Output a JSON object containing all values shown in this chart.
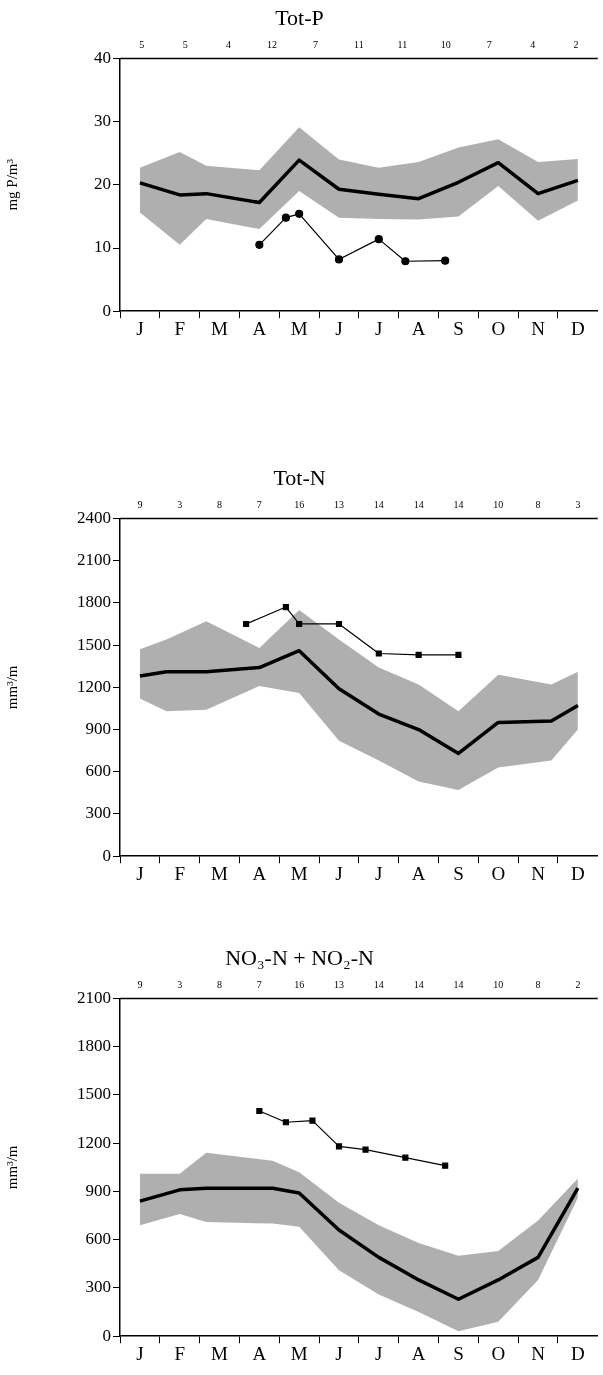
{
  "chart_data": [
    {
      "type": "line",
      "title": "Tot-P",
      "ylabel": "mg P/m³",
      "ylim": [
        0,
        40
      ],
      "yticks": [
        0,
        10,
        20,
        30,
        40
      ],
      "categories": [
        null,
        "J",
        null,
        null,
        "F",
        null,
        null,
        "M",
        null,
        null,
        "A",
        null,
        null,
        "M",
        null,
        null,
        "J",
        null,
        null,
        "J",
        null,
        null,
        "A",
        null,
        null,
        "S",
        null,
        null,
        "O",
        null,
        null,
        "N",
        null,
        null,
        "D",
        null
      ],
      "annotations": [
        "5",
        "5",
        "4",
        "12",
        "7",
        "11",
        "11",
        "10",
        "7",
        "4",
        "2"
      ],
      "grid": false,
      "legend": false,
      "series": [
        {
          "color": "#000000",
          "marker": "none",
          "values": [
            null,
            20.3,
            null,
            null,
            18.4,
            null,
            18.6,
            null,
            null,
            null,
            17.2,
            null,
            null,
            23.9,
            null,
            null,
            19.3,
            null,
            null,
            18.5,
            null,
            null,
            17.8,
            null,
            null,
            20.4,
            null,
            null,
            23.5,
            null,
            null,
            18.6,
            null,
            null,
            20.7,
            null
          ],
          "upper": [
            null,
            22.7,
            null,
            null,
            25.2,
            null,
            23,
            null,
            null,
            null,
            22.3,
            null,
            null,
            29.1,
            null,
            null,
            24,
            null,
            null,
            22.7,
            null,
            null,
            23.6,
            null,
            null,
            25.9,
            null,
            null,
            27.2,
            null,
            null,
            23.6,
            null,
            null,
            24.1,
            null
          ],
          "lower": [
            null,
            15.6,
            null,
            null,
            10.5,
            null,
            14.6,
            null,
            null,
            null,
            13,
            null,
            null,
            19,
            null,
            null,
            14.8,
            null,
            null,
            14.6,
            null,
            null,
            14.5,
            null,
            null,
            15,
            null,
            null,
            19.8,
            null,
            null,
            14.3,
            null,
            null,
            17.5,
            null
          ]
        },
        {
          "color": "#000000",
          "marker": "circle",
          "values": [
            null,
            null,
            null,
            null,
            null,
            null,
            null,
            null,
            null,
            null,
            10.5,
            null,
            14.8,
            15.4,
            null,
            null,
            8.2,
            null,
            null,
            11.4,
            null,
            7.9,
            null,
            null,
            8,
            null,
            null,
            null,
            null,
            null,
            null,
            null,
            null,
            null,
            null,
            null
          ]
        }
      ]
    },
    {
      "type": "line",
      "title": "Tot-N",
      "ylabel": "mm³/m",
      "ylim": [
        0,
        2400
      ],
      "yticks": [
        0,
        300,
        600,
        900,
        1200,
        1500,
        1800,
        2100,
        2400
      ],
      "categories": [
        null,
        "J",
        null,
        null,
        "F",
        null,
        null,
        "M",
        null,
        null,
        "A",
        null,
        null,
        "M",
        null,
        null,
        "J",
        null,
        null,
        "J",
        null,
        null,
        "A",
        null,
        null,
        "S",
        null,
        null,
        "O",
        null,
        null,
        "N",
        null,
        null,
        "D",
        null
      ],
      "annotations": [
        "9",
        "3",
        "8",
        "7",
        "16",
        "13",
        "14",
        "14",
        "14",
        "10",
        "8",
        "3"
      ],
      "grid": false,
      "legend": false,
      "series": [
        {
          "color": "#000000",
          "marker": "none",
          "values": [
            null,
            1280,
            null,
            1310,
            null,
            null,
            1310,
            null,
            null,
            null,
            1340,
            null,
            null,
            1460,
            null,
            null,
            1190,
            null,
            null,
            1010,
            null,
            null,
            900,
            null,
            null,
            730,
            null,
            null,
            950,
            null,
            null,
            null,
            960,
            null,
            1070,
            null
          ],
          "upper": [
            null,
            1470,
            null,
            1540,
            null,
            null,
            1670,
            null,
            null,
            null,
            1480,
            null,
            null,
            1750,
            null,
            null,
            1540,
            null,
            null,
            1340,
            null,
            null,
            1220,
            null,
            null,
            1030,
            null,
            null,
            1290,
            null,
            null,
            null,
            1220,
            null,
            1310,
            null
          ],
          "lower": [
            null,
            1120,
            null,
            1030,
            null,
            null,
            1040,
            null,
            null,
            null,
            1210,
            null,
            null,
            1160,
            null,
            null,
            820,
            null,
            null,
            680,
            null,
            null,
            530,
            null,
            null,
            470,
            null,
            null,
            630,
            null,
            null,
            null,
            680,
            null,
            900,
            null
          ]
        },
        {
          "color": "#000000",
          "marker": "square",
          "values": [
            null,
            null,
            null,
            null,
            null,
            null,
            null,
            null,
            null,
            1650,
            null,
            null,
            1770,
            1650,
            null,
            null,
            1650,
            null,
            null,
            1440,
            null,
            null,
            1430,
            null,
            null,
            1430,
            null,
            null,
            null,
            null,
            null,
            null,
            null,
            null,
            null,
            null
          ]
        }
      ]
    },
    {
      "type": "line",
      "title": "NO₃-N + NO₂-N",
      "ylabel": "mm³/m",
      "ylim": [
        0,
        2100
      ],
      "yticks": [
        0,
        300,
        600,
        900,
        1200,
        1500,
        1800,
        2100
      ],
      "categories": [
        null,
        "J",
        null,
        null,
        "F",
        null,
        null,
        "M",
        null,
        null,
        "A",
        null,
        null,
        "M",
        null,
        null,
        "J",
        null,
        null,
        "J",
        null,
        null,
        "A",
        null,
        null,
        "S",
        null,
        null,
        "O",
        null,
        null,
        "N",
        null,
        null,
        "D",
        null
      ],
      "annotations": [
        "9",
        "3",
        "8",
        "7",
        "16",
        "13",
        "14",
        "14",
        "14",
        "10",
        "8",
        "2"
      ],
      "grid": false,
      "legend": false,
      "series": [
        {
          "color": "#000000",
          "marker": "none",
          "values": [
            null,
            840,
            null,
            null,
            910,
            null,
            920,
            null,
            null,
            null,
            null,
            920,
            null,
            890,
            null,
            null,
            660,
            null,
            null,
            490,
            null,
            null,
            350,
            null,
            null,
            230,
            null,
            null,
            350,
            null,
            null,
            490,
            null,
            null,
            920,
            null
          ],
          "upper": [
            null,
            1010,
            null,
            null,
            1010,
            null,
            1140,
            null,
            null,
            null,
            null,
            1090,
            null,
            1020,
            null,
            null,
            830,
            null,
            null,
            690,
            null,
            null,
            580,
            null,
            null,
            500,
            null,
            null,
            530,
            null,
            null,
            720,
            null,
            null,
            980,
            null
          ],
          "lower": [
            null,
            690,
            null,
            null,
            760,
            null,
            710,
            null,
            null,
            null,
            null,
            700,
            null,
            680,
            null,
            null,
            410,
            null,
            null,
            260,
            null,
            null,
            150,
            null,
            null,
            30,
            null,
            null,
            90,
            null,
            null,
            350,
            null,
            null,
            860,
            null
          ]
        },
        {
          "color": "#000000",
          "marker": "square",
          "values": [
            null,
            null,
            null,
            null,
            null,
            null,
            null,
            null,
            null,
            null,
            1400,
            null,
            1330,
            null,
            1340,
            null,
            1180,
            null,
            1160,
            null,
            null,
            1110,
            null,
            null,
            1060,
            null,
            null,
            null,
            null,
            null,
            null,
            null,
            null,
            null,
            null,
            null
          ]
        }
      ]
    }
  ]
}
